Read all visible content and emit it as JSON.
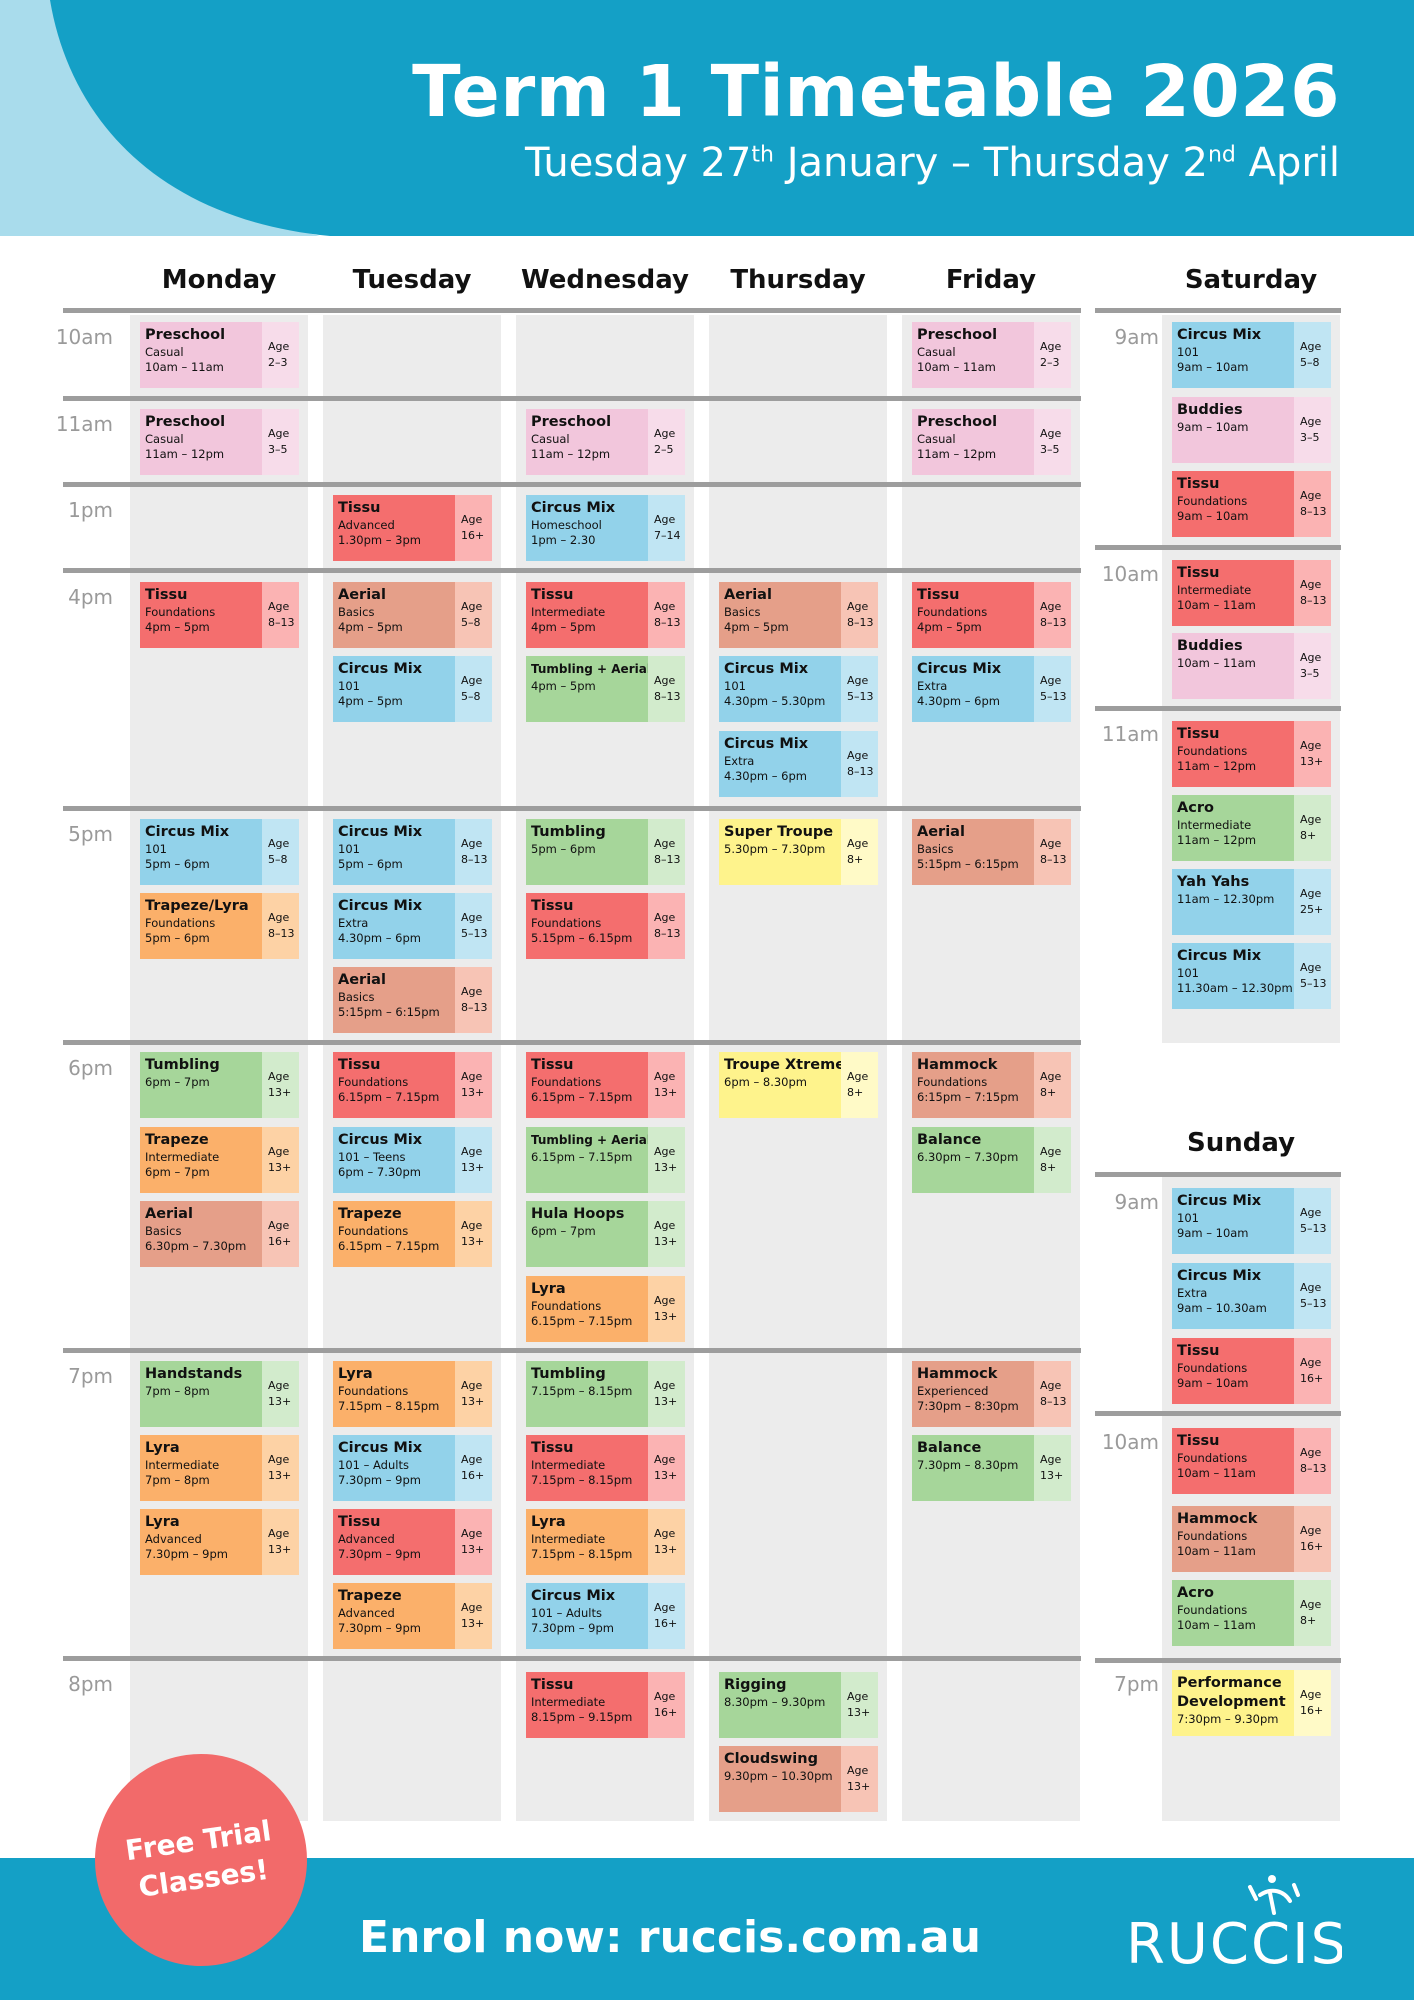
{
  "header": {
    "title": "Term 1 Timetable 2026",
    "dates": {
      "p1": "Tuesday 27",
      "s1": "th",
      "p2": " January – Thursday 2",
      "s2": "nd",
      "p3": " April"
    }
  },
  "days": [
    "Monday",
    "Tuesday",
    "Wednesday",
    "Thursday",
    "Friday",
    "Saturday",
    "Sunday"
  ],
  "weekday_time_labels": [
    "10am",
    "11am",
    "1pm",
    "4pm",
    "5pm",
    "6pm",
    "7pm",
    "8pm"
  ],
  "saturday_time_labels": [
    "9am",
    "10am",
    "11am"
  ],
  "sunday_time_labels": [
    "9am",
    "10am",
    "7pm"
  ],
  "colors": {
    "pink": [
      "#f2c6dc",
      "#f7dcea"
    ],
    "red": [
      "#f46e6e",
      "#fbb3b3"
    ],
    "salmon": [
      "#e59f89",
      "#f7c4b5"
    ],
    "blue": [
      "#92d2ea",
      "#c0e5f3"
    ],
    "green": [
      "#a6d69a",
      "#d2ebcc"
    ],
    "orange": [
      "#fbb06a",
      "#fdd2a5"
    ],
    "yellow": [
      "#fef38c",
      "#fffac7"
    ],
    "header_blue": "#14a0c6",
    "light_blue": "#a9dcec",
    "badge_red": "#f26a6a"
  },
  "age_label": "Age",
  "classes": {
    "monday": [
      {
        "name": "Preschool",
        "sub": "Casual",
        "time": "10am – 11am",
        "age": "2–3",
        "color": "pink"
      },
      {
        "name": "Preschool",
        "sub": "Casual",
        "time": "11am – 12pm",
        "age": "3–5",
        "color": "pink"
      },
      {
        "name": "Tissu",
        "sub": "Foundations",
        "time": "4pm – 5pm",
        "age": "8–13",
        "color": "red"
      },
      {
        "name": "Circus Mix",
        "sub": "101",
        "time": "5pm – 6pm",
        "age": "5–8",
        "color": "blue"
      },
      {
        "name": "Trapeze/Lyra",
        "sub": "Foundations",
        "time": "5pm – 6pm",
        "age": "8–13",
        "color": "orange"
      },
      {
        "name": "Tumbling",
        "sub": "",
        "time": "6pm – 7pm",
        "age": "13+",
        "color": "green"
      },
      {
        "name": "Trapeze",
        "sub": "Intermediate",
        "time": "6pm – 7pm",
        "age": "13+",
        "color": "orange"
      },
      {
        "name": "Aerial",
        "sub": "Basics",
        "time": "6.30pm – 7.30pm",
        "age": "16+",
        "color": "salmon"
      },
      {
        "name": "Handstands",
        "sub": "",
        "time": "7pm – 8pm",
        "age": "13+",
        "color": "green"
      },
      {
        "name": "Lyra",
        "sub": "Intermediate",
        "time": "7pm – 8pm",
        "age": "13+",
        "color": "orange"
      },
      {
        "name": "Lyra",
        "sub": "Advanced",
        "time": "7.30pm – 9pm",
        "age": "13+",
        "color": "orange"
      }
    ],
    "tuesday": [
      {
        "name": "Tissu",
        "sub": "Advanced",
        "time": "1.30pm – 3pm",
        "age": "16+",
        "color": "red"
      },
      {
        "name": "Aerial",
        "sub": "Basics",
        "time": "4pm – 5pm",
        "age": "5–8",
        "color": "salmon"
      },
      {
        "name": "Circus Mix",
        "sub": "101",
        "time": "4pm – 5pm",
        "age": "5–8",
        "color": "blue"
      },
      {
        "name": "Circus Mix",
        "sub": "101",
        "time": "5pm – 6pm",
        "age": "8–13",
        "color": "blue"
      },
      {
        "name": "Circus Mix",
        "sub": "Extra",
        "time": "4.30pm – 6pm",
        "age": "5–13",
        "color": "blue"
      },
      {
        "name": "Aerial",
        "sub": "Basics",
        "time": "5:15pm – 6:15pm",
        "age": "8–13",
        "color": "salmon"
      },
      {
        "name": "Tissu",
        "sub": "Foundations",
        "time": "6.15pm – 7.15pm",
        "age": "13+",
        "color": "red"
      },
      {
        "name": "Circus Mix",
        "sub": "101 – Teens",
        "time": "6pm – 7.30pm",
        "age": "13+",
        "color": "blue"
      },
      {
        "name": "Trapeze",
        "sub": "Foundations",
        "time": "6.15pm – 7.15pm",
        "age": "13+",
        "color": "orange"
      },
      {
        "name": "Lyra",
        "sub": "Foundations",
        "time": "7.15pm – 8.15pm",
        "age": "13+",
        "color": "orange"
      },
      {
        "name": "Circus Mix",
        "sub": "101 – Adults",
        "time": "7.30pm – 9pm",
        "age": "16+",
        "color": "blue"
      },
      {
        "name": "Tissu",
        "sub": "Advanced",
        "time": "7.30pm – 9pm",
        "age": "13+",
        "color": "red"
      },
      {
        "name": "Trapeze",
        "sub": "Advanced",
        "time": "7.30pm – 9pm",
        "age": "13+",
        "color": "orange"
      }
    ],
    "wednesday": [
      {
        "name": "Preschool",
        "sub": "Casual",
        "time": "11am – 12pm",
        "age": "2–5",
        "color": "pink"
      },
      {
        "name": "Circus Mix",
        "sub": "Homeschool",
        "time": "1pm – 2.30",
        "age": "7–14",
        "color": "blue"
      },
      {
        "name": "Tissu",
        "sub": "Intermediate",
        "time": "4pm – 5pm",
        "age": "8–13",
        "color": "red"
      },
      {
        "name": "Tumbling + Aerial",
        "sub": "",
        "time": "4pm – 5pm",
        "age": "8–13",
        "color": "green",
        "small": true
      },
      {
        "name": "Tumbling",
        "sub": "",
        "time": "5pm – 6pm",
        "age": "8–13",
        "color": "green"
      },
      {
        "name": "Tissu",
        "sub": "Foundations",
        "time": "5.15pm – 6.15pm",
        "age": "8–13",
        "color": "red"
      },
      {
        "name": "Tissu",
        "sub": "Foundations",
        "time": "6.15pm – 7.15pm",
        "age": "13+",
        "color": "red"
      },
      {
        "name": "Tumbling + Aerial",
        "sub": "",
        "time": "6.15pm – 7.15pm",
        "age": "13+",
        "color": "green",
        "small": true
      },
      {
        "name": "Hula Hoops",
        "sub": "",
        "time": "6pm – 7pm",
        "age": "13+",
        "color": "green"
      },
      {
        "name": "Lyra",
        "sub": "Foundations",
        "time": "6.15pm – 7.15pm",
        "age": "13+",
        "color": "orange"
      },
      {
        "name": "Tumbling",
        "sub": "",
        "time": "7.15pm – 8.15pm",
        "age": "13+",
        "color": "green"
      },
      {
        "name": "Tissu",
        "sub": "Intermediate",
        "time": "7.15pm – 8.15pm",
        "age": "13+",
        "color": "red"
      },
      {
        "name": "Lyra",
        "sub": "Intermediate",
        "time": "7.15pm – 8.15pm",
        "age": "13+",
        "color": "orange"
      },
      {
        "name": "Circus Mix",
        "sub": "101 – Adults",
        "time": "7.30pm – 9pm",
        "age": "16+",
        "color": "blue"
      },
      {
        "name": "Tissu",
        "sub": "Intermediate",
        "time": "8.15pm – 9.15pm",
        "age": "16+",
        "color": "red"
      }
    ],
    "thursday": [
      {
        "name": "Aerial",
        "sub": "Basics",
        "time": "4pm – 5pm",
        "age": "8–13",
        "color": "salmon"
      },
      {
        "name": "Circus Mix",
        "sub": "101",
        "time": "4.30pm – 5.30pm",
        "age": "5–13",
        "color": "blue"
      },
      {
        "name": "Circus Mix",
        "sub": "Extra",
        "time": "4.30pm – 6pm",
        "age": "8–13",
        "color": "blue"
      },
      {
        "name": "Super Troupe",
        "sub": "",
        "time": "5.30pm – 7.30pm",
        "age": "8+",
        "color": "yellow"
      },
      {
        "name": "Troupe Xtreme",
        "sub": "",
        "time": "6pm – 8.30pm",
        "age": "8+",
        "color": "yellow"
      },
      {
        "name": "Rigging",
        "sub": "",
        "time": "8.30pm – 9.30pm",
        "age": "13+",
        "color": "green"
      },
      {
        "name": "Cloudswing",
        "sub": "",
        "time": "9.30pm – 10.30pm",
        "age": "13+",
        "color": "salmon"
      }
    ],
    "friday": [
      {
        "name": "Preschool",
        "sub": "Casual",
        "time": "10am – 11am",
        "age": "2–3",
        "color": "pink"
      },
      {
        "name": "Preschool",
        "sub": "Casual",
        "time": "11am – 12pm",
        "age": "3–5",
        "color": "pink"
      },
      {
        "name": "Tissu",
        "sub": "Foundations",
        "time": "4pm – 5pm",
        "age": "8–13",
        "color": "red"
      },
      {
        "name": "Circus Mix",
        "sub": "Extra",
        "time": "4.30pm – 6pm",
        "age": "5–13",
        "color": "blue"
      },
      {
        "name": "Aerial",
        "sub": "Basics",
        "time": "5:15pm – 6:15pm",
        "age": "8–13",
        "color": "salmon"
      },
      {
        "name": "Hammock",
        "sub": "Foundations",
        "time": "6:15pm – 7:15pm",
        "age": "8+",
        "color": "salmon"
      },
      {
        "name": "Balance",
        "sub": "",
        "time": "6.30pm – 7.30pm",
        "age": "8+",
        "color": "green"
      },
      {
        "name": "Hammock",
        "sub": "Experienced",
        "time": "7:30pm – 8:30pm",
        "age": "8–13",
        "color": "salmon"
      },
      {
        "name": "Balance",
        "sub": "",
        "time": "7.30pm – 8.30pm",
        "age": "13+",
        "color": "green"
      }
    ],
    "saturday": [
      {
        "name": "Circus Mix",
        "sub": "101",
        "time": "9am – 10am",
        "age": "5–8",
        "color": "blue"
      },
      {
        "name": "Buddies",
        "sub": "",
        "time": "9am – 10am",
        "age": "3–5",
        "color": "pink"
      },
      {
        "name": "Tissu",
        "sub": "Foundations",
        "time": "9am – 10am",
        "age": "8–13",
        "color": "red"
      },
      {
        "name": "Tissu",
        "sub": "Intermediate",
        "time": "10am – 11am",
        "age": "8–13",
        "color": "red"
      },
      {
        "name": "Buddies",
        "sub": "",
        "time": "10am – 11am",
        "age": "3–5",
        "color": "pink"
      },
      {
        "name": "Tissu",
        "sub": "Foundations",
        "time": "11am – 12pm",
        "age": "13+",
        "color": "red"
      },
      {
        "name": "Acro",
        "sub": "Intermediate",
        "time": "11am – 12pm",
        "age": "8+",
        "color": "green"
      },
      {
        "name": "Yah Yahs",
        "sub": "",
        "time": "11am – 12.30pm",
        "age": "25+",
        "color": "blue"
      },
      {
        "name": "Circus Mix",
        "sub": "101",
        "time": "11.30am – 12.30pm",
        "age": "5–13",
        "color": "blue"
      }
    ],
    "sunday": [
      {
        "name": "Circus Mix",
        "sub": "101",
        "time": "9am – 10am",
        "age": "5–13",
        "color": "blue"
      },
      {
        "name": "Circus Mix",
        "sub": "Extra",
        "time": "9am – 10.30am",
        "age": "5–13",
        "color": "blue"
      },
      {
        "name": "Tissu",
        "sub": "Foundations",
        "time": "9am – 10am",
        "age": "16+",
        "color": "red"
      },
      {
        "name": "Tissu",
        "sub": "Foundations",
        "time": "10am – 11am",
        "age": "8–13",
        "color": "red"
      },
      {
        "name": "Hammock",
        "sub": "Foundations",
        "time": "10am – 11am",
        "age": "16+",
        "color": "salmon"
      },
      {
        "name": "Acro",
        "sub": "Foundations",
        "time": "10am – 11am",
        "age": "8+",
        "color": "green"
      },
      {
        "name": "Performance",
        "sub": "Development",
        "time": "7:30pm – 9.30pm",
        "age": "16+",
        "color": "yellow",
        "sub_bold": true
      }
    ]
  },
  "footer": {
    "enrol": "Enrol now: ruccis.com.au",
    "trial_line1": "Free Trial",
    "trial_line2": "Classes!",
    "logo_text": "RUCCIS"
  }
}
